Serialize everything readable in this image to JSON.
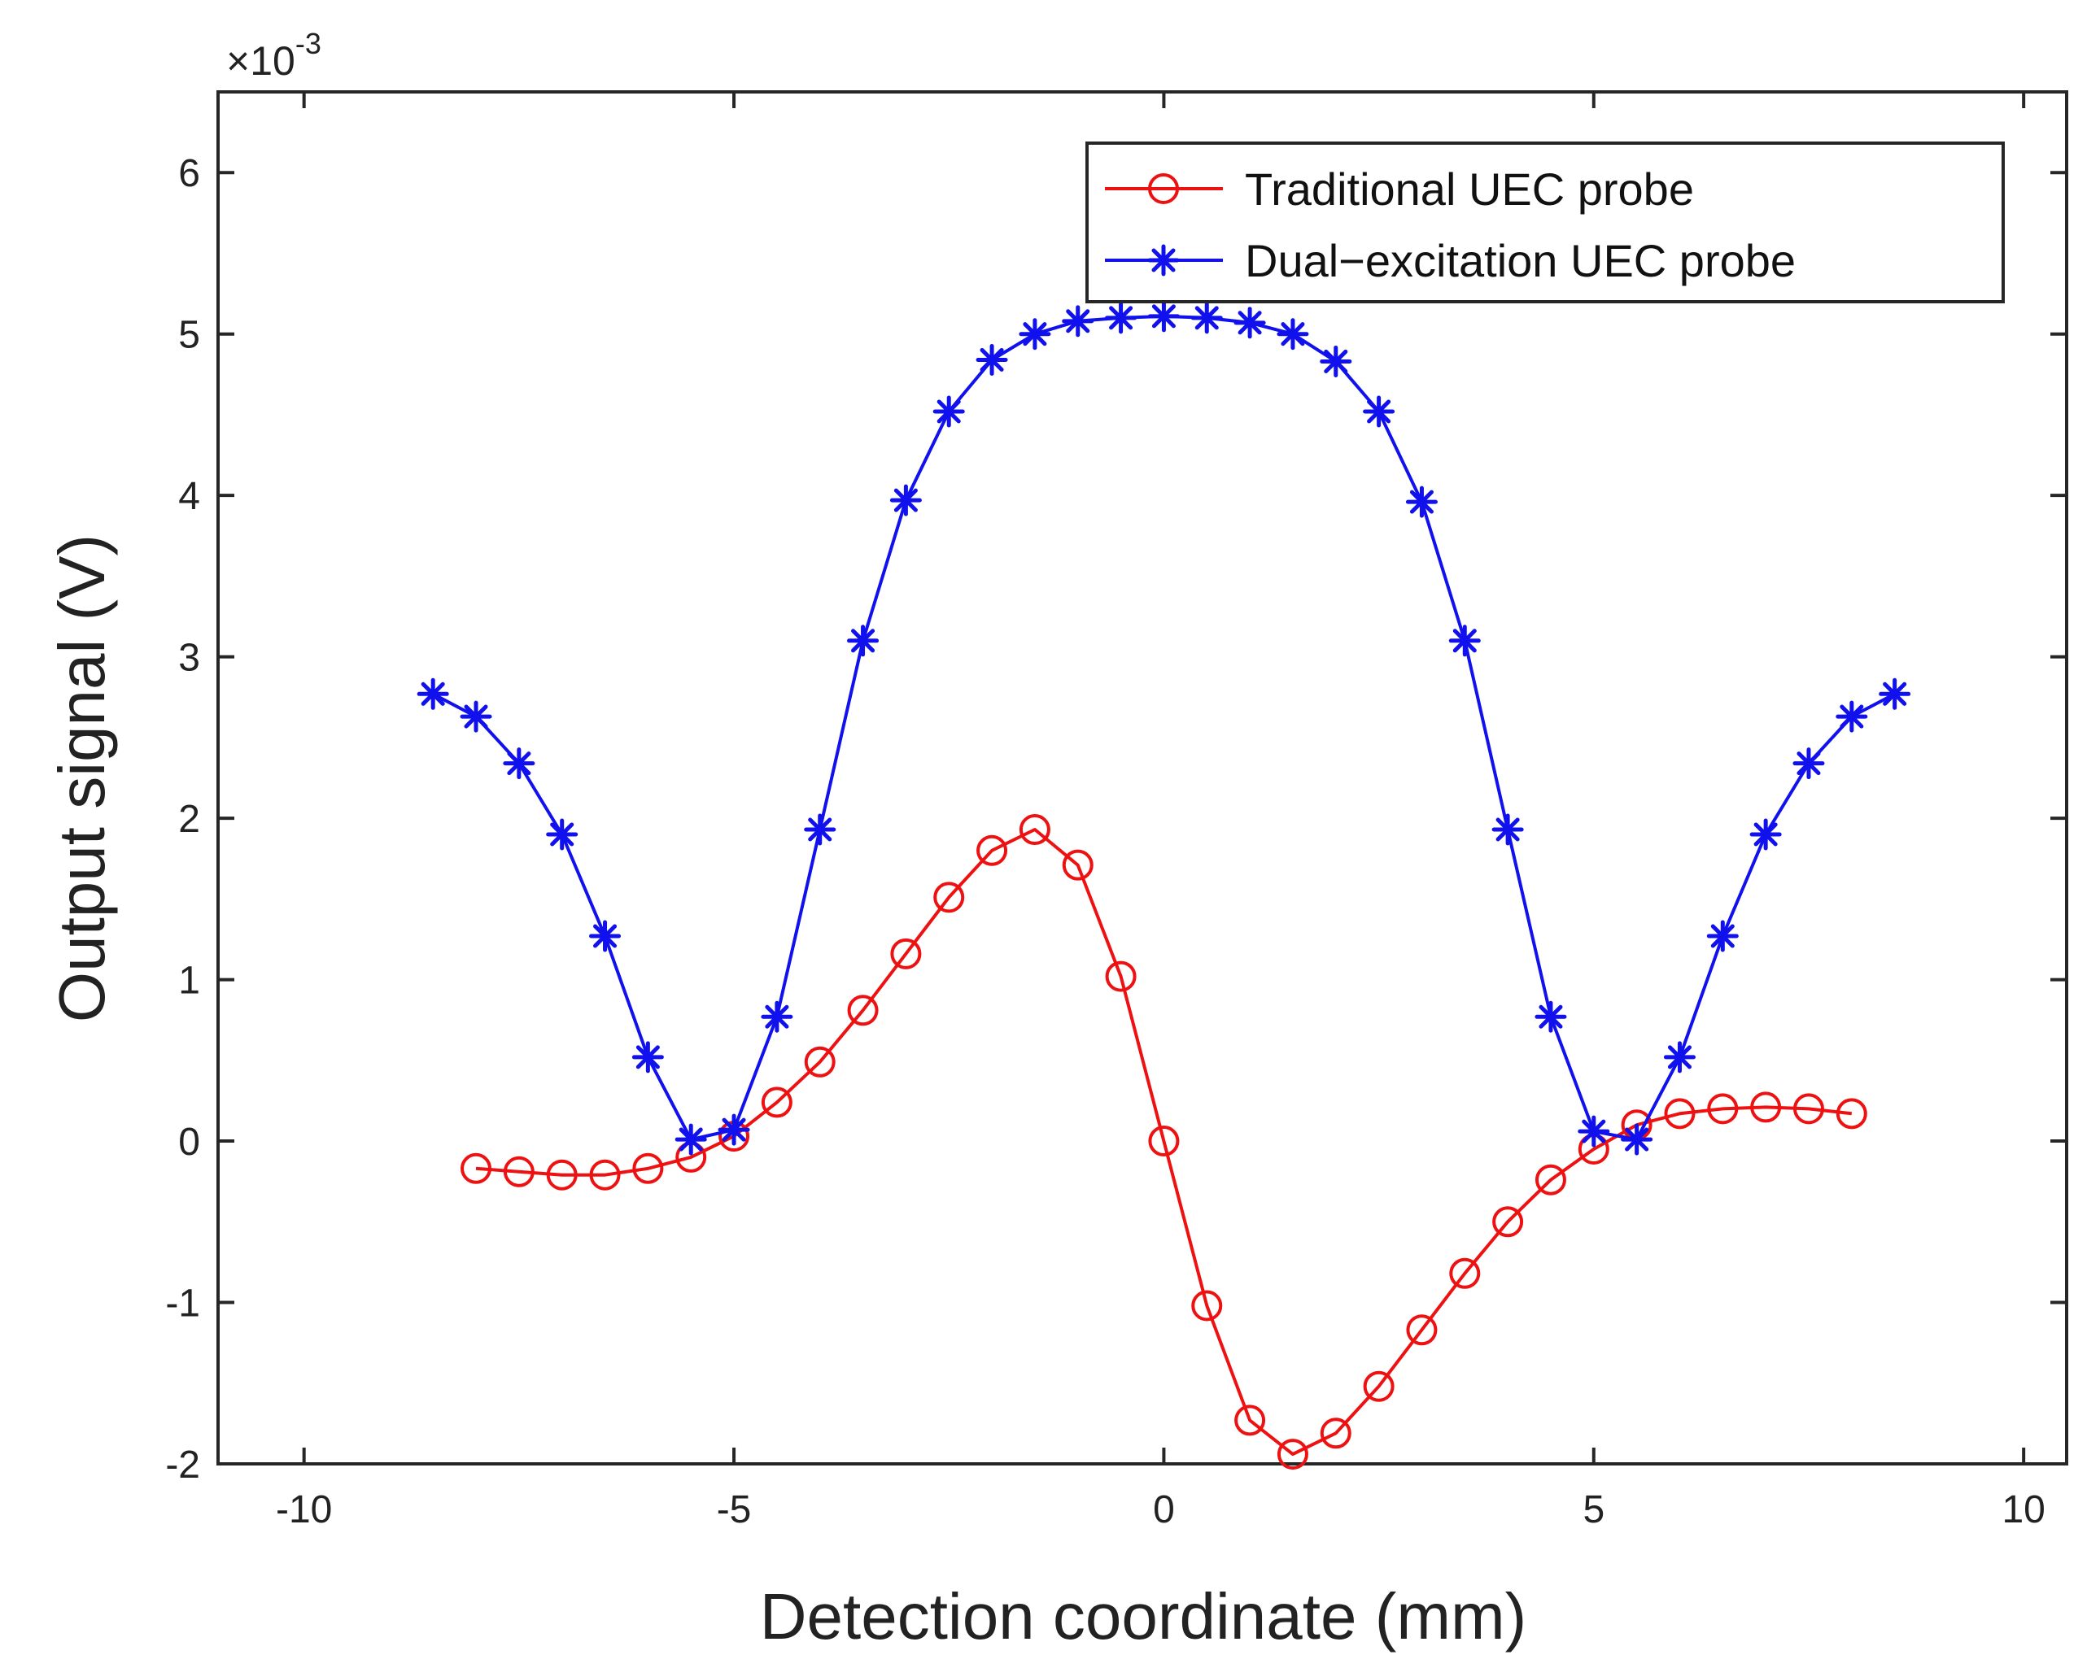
{
  "chart_data": {
    "type": "line",
    "title": "",
    "xlabel": "Detection coordinate (mm)",
    "ylabel": "Output signal (V)",
    "xlim": [
      -11,
      10.5
    ],
    "ylim": [
      -2,
      6.5
    ],
    "y_scale_factor_label": {
      "prefix": "×10",
      "exponent": "-3"
    },
    "xticks": [
      -10,
      -5,
      0,
      5,
      10
    ],
    "xtick_labels": [
      "-10",
      "-5",
      "0",
      "5",
      "10"
    ],
    "yticks": [
      -2,
      -1,
      0,
      1,
      2,
      3,
      4,
      5,
      6
    ],
    "ytick_labels": [
      "-2",
      "-1",
      "0",
      "1",
      "2",
      "3",
      "4",
      "5",
      "6"
    ],
    "grid": false,
    "legend_position": "top-right",
    "series": [
      {
        "name": "Traditional UEC probe",
        "color": "#ee1111",
        "marker": "circle",
        "x": [
          -8,
          -7.5,
          -7,
          -6.5,
          -6,
          -5.5,
          -5,
          -4.5,
          -4,
          -3.5,
          -3,
          -2.5,
          -2,
          -1.5,
          -1,
          -0.5,
          0,
          0.5,
          1,
          1.5,
          2,
          2.5,
          3,
          3.5,
          4,
          4.5,
          5,
          5.5,
          6,
          6.5,
          7,
          7.5,
          8
        ],
        "values": [
          -0.17,
          -0.19,
          -0.21,
          -0.21,
          -0.17,
          -0.1,
          0.03,
          0.24,
          0.49,
          0.81,
          1.16,
          1.51,
          1.8,
          1.93,
          1.71,
          1.02,
          0,
          -1.02,
          -1.73,
          -1.94,
          -1.81,
          -1.52,
          -1.17,
          -0.82,
          -0.5,
          -0.24,
          -0.05,
          0.1,
          0.17,
          0.2,
          0.21,
          0.2,
          0.17
        ]
      },
      {
        "name": "Dual-excitation UEC probe",
        "color": "#1111ee",
        "marker": "asterisk",
        "x": [
          -8.5,
          -8,
          -7.5,
          -7,
          -6.5,
          -6,
          -5.5,
          -5,
          -4.5,
          -4,
          -3.5,
          -3,
          -2.5,
          -2,
          -1.5,
          -1,
          -0.5,
          0,
          0.5,
          1,
          1.5,
          2,
          2.5,
          3,
          3.5,
          4,
          4.5,
          5,
          5.5,
          6,
          6.5,
          7,
          7.5,
          8,
          8.5
        ],
        "values": [
          2.77,
          2.63,
          2.34,
          1.9,
          1.27,
          0.52,
          0.01,
          0.07,
          0.77,
          1.93,
          3.1,
          3.97,
          4.52,
          4.84,
          5.0,
          5.08,
          5.1,
          5.11,
          5.1,
          5.07,
          5.0,
          4.83,
          4.52,
          3.96,
          3.1,
          1.93,
          0.77,
          0.06,
          0.01,
          0.52,
          1.27,
          1.9,
          2.34,
          2.63,
          2.77
        ]
      }
    ],
    "legend": [
      "Traditional UEC probe",
      "Dual−excitation UEC probe"
    ]
  }
}
